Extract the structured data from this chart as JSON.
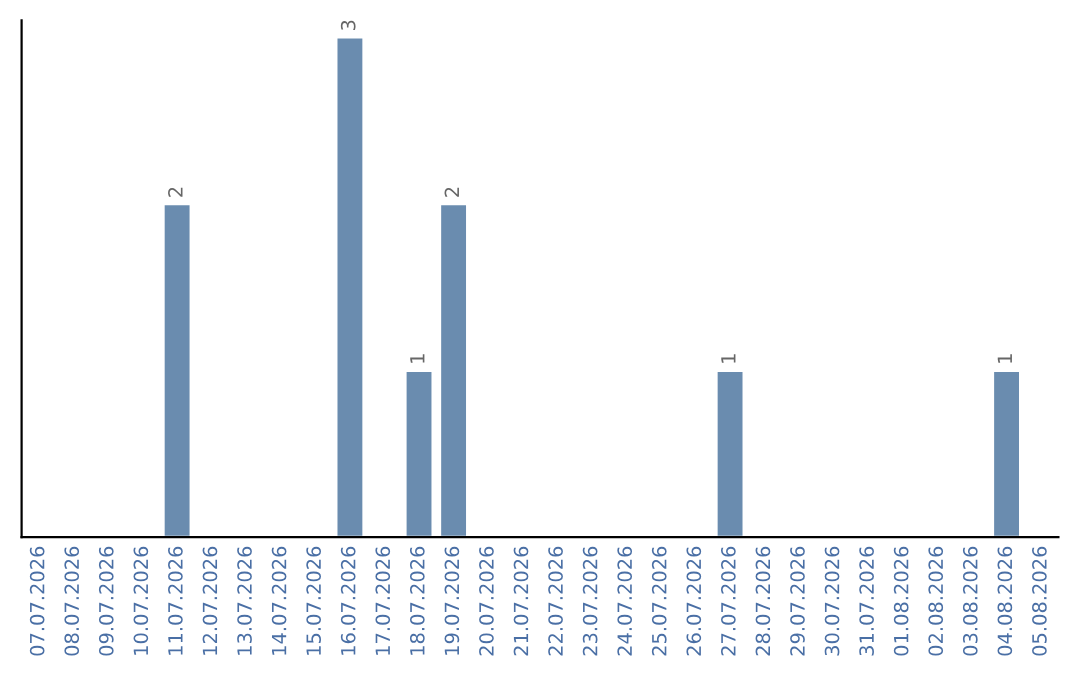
{
  "chart_data": {
    "type": "bar",
    "categories": [
      "07.07.2026",
      "08.07.2026",
      "09.07.2026",
      "10.07.2026",
      "11.07.2026",
      "12.07.2026",
      "13.07.2026",
      "14.07.2026",
      "15.07.2026",
      "16.07.2026",
      "17.07.2026",
      "18.07.2026",
      "19.07.2026",
      "20.07.2026",
      "21.07.2026",
      "22.07.2026",
      "23.07.2026",
      "24.07.2026",
      "25.07.2026",
      "26.07.2026",
      "27.07.2026",
      "28.07.2026",
      "29.07.2026",
      "30.07.2026",
      "31.07.2026",
      "01.08.2026",
      "02.08.2026",
      "03.08.2026",
      "04.08.2026",
      "05.08.2026"
    ],
    "values": [
      null,
      null,
      null,
      null,
      2,
      null,
      null,
      null,
      null,
      3,
      null,
      1,
      2,
      null,
      null,
      null,
      null,
      null,
      null,
      null,
      1,
      null,
      null,
      null,
      null,
      null,
      null,
      null,
      1,
      null
    ],
    "color": "#6a8caf",
    "ylim": [
      0,
      3.1
    ],
    "tick_labels": "x",
    "data_labels": true,
    "grid": false,
    "legend": false
  }
}
